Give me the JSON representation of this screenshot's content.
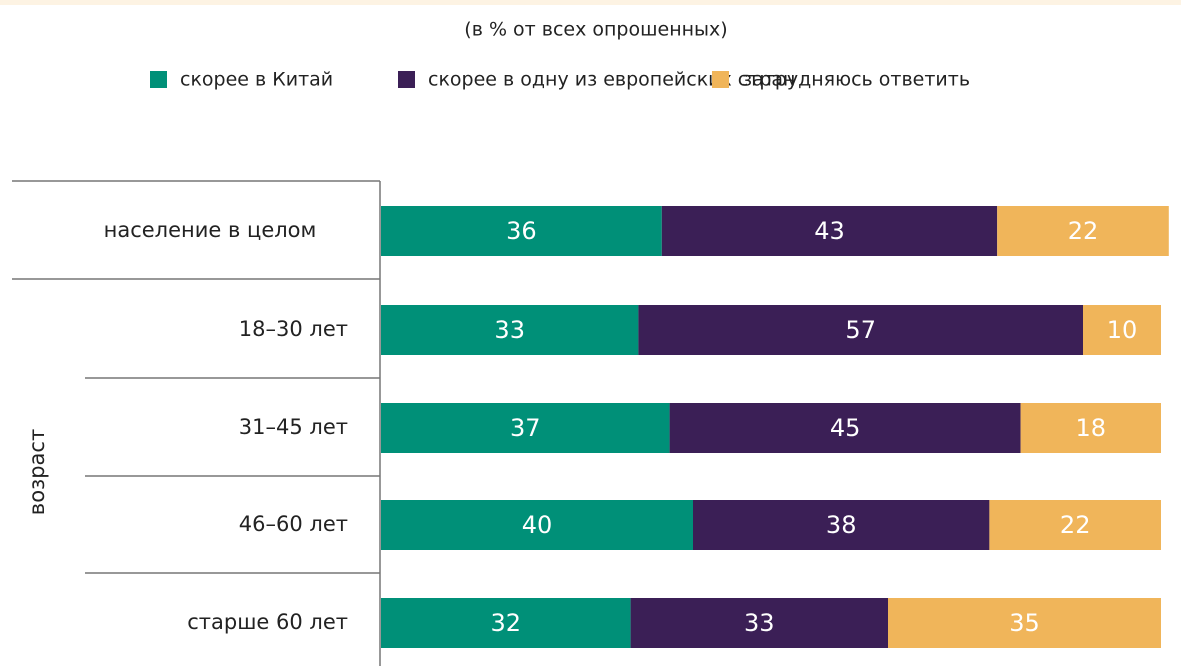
{
  "chart_data": {
    "type": "stacked-bar",
    "orientation": "horizontal",
    "subtitle": "(в % от всех опрошенных)",
    "group_label": "возраст",
    "categories": [
      "население в целом",
      "18–30 лет",
      "31–45 лет",
      "46–60 лет",
      "старше 60 лет"
    ],
    "series": [
      {
        "name": "скорее в Китай",
        "color": "#009078",
        "values": [
          36,
          33,
          37,
          40,
          32
        ]
      },
      {
        "name": "скорее в одну из европейских стран",
        "color": "#3b1f56",
        "values": [
          43,
          57,
          45,
          38,
          33
        ]
      },
      {
        "name": "затрудняюсь ответить",
        "color": "#f0b55a",
        "values": [
          22,
          10,
          18,
          22,
          35
        ]
      }
    ],
    "legend": "top"
  }
}
